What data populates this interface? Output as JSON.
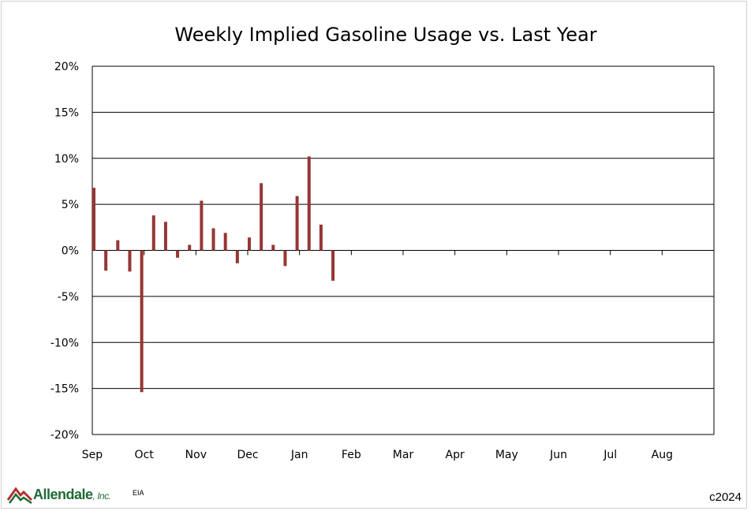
{
  "chart_data": {
    "type": "bar",
    "title": "Weekly Implied Gasoline Usage vs. Last Year",
    "xlabel": "",
    "ylabel": "",
    "ylim": [
      -20,
      20
    ],
    "y_ticks": [
      "20%",
      "15%",
      "10%",
      "5%",
      "0%",
      "-5%",
      "-10%",
      "-15%",
      "-20%"
    ],
    "y_tick_values": [
      20,
      15,
      10,
      5,
      0,
      -5,
      -10,
      -15,
      -20
    ],
    "x_month_labels": [
      "Sep",
      "Oct",
      "Nov",
      "Dec",
      "Jan",
      "Feb",
      "Mar",
      "Apr",
      "May",
      "Jun",
      "Jul",
      "Aug"
    ],
    "gridlines": "horizontal",
    "legend": "none",
    "bar_color": "#963634",
    "series": [
      {
        "values": [
          6.8,
          -2.2,
          1.1,
          -2.3,
          -15.4,
          3.8,
          3.1,
          -0.8,
          0.6,
          5.4,
          2.4,
          1.9,
          -1.4,
          1.4,
          7.3,
          0.6,
          -1.7,
          5.9,
          10.2,
          2.8,
          -3.3
        ]
      }
    ]
  },
  "footer": {
    "logo_text": "Allendale",
    "logo_suffix": ", Inc.",
    "source": "EIA",
    "copyright": "c2024"
  }
}
